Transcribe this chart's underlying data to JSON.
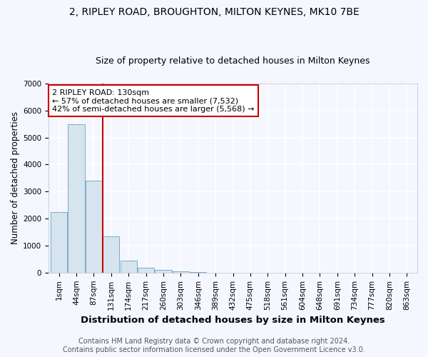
{
  "title1": "2, RIPLEY ROAD, BROUGHTON, MILTON KEYNES, MK10 7BE",
  "title2": "Size of property relative to detached houses in Milton Keynes",
  "xlabel": "Distribution of detached houses by size in Milton Keynes",
  "ylabel": "Number of detached properties",
  "footer1": "Contains HM Land Registry data © Crown copyright and database right 2024.",
  "footer2": "Contains public sector information licensed under the Open Government Licence v3.0.",
  "annotation_line1": "2 RIPLEY ROAD: 130sqm",
  "annotation_line2": "← 57% of detached houses are smaller (7,532)",
  "annotation_line3": "42% of semi-detached houses are larger (5,568) →",
  "bar_labels": [
    "1sqm",
    "44sqm",
    "87sqm",
    "131sqm",
    "174sqm",
    "217sqm",
    "260sqm",
    "303sqm",
    "346sqm",
    "389sqm",
    "432sqm",
    "475sqm",
    "518sqm",
    "561sqm",
    "604sqm",
    "648sqm",
    "691sqm",
    "734sqm",
    "777sqm",
    "820sqm",
    "863sqm"
  ],
  "bar_values": [
    2250,
    5500,
    3400,
    1350,
    450,
    175,
    100,
    50,
    10,
    0,
    0,
    0,
    0,
    0,
    0,
    0,
    0,
    0,
    0,
    0,
    0
  ],
  "bar_color": "#d6e4f0",
  "bar_edge_color": "#7aaac8",
  "red_line_index": 2,
  "ylim": [
    0,
    7000
  ],
  "yticks": [
    0,
    1000,
    2000,
    3000,
    4000,
    5000,
    6000,
    7000
  ],
  "bg_color": "#f5f7ff",
  "grid_color": "#ffffff",
  "annotation_box_color": "#ffffff",
  "annotation_box_edge": "#cc0000",
  "red_line_color": "#cc0000",
  "title1_fontsize": 10,
  "title2_fontsize": 9,
  "xlabel_fontsize": 9.5,
  "ylabel_fontsize": 8.5,
  "footer_fontsize": 7,
  "tick_fontsize": 7.5,
  "annotation_fontsize": 8
}
